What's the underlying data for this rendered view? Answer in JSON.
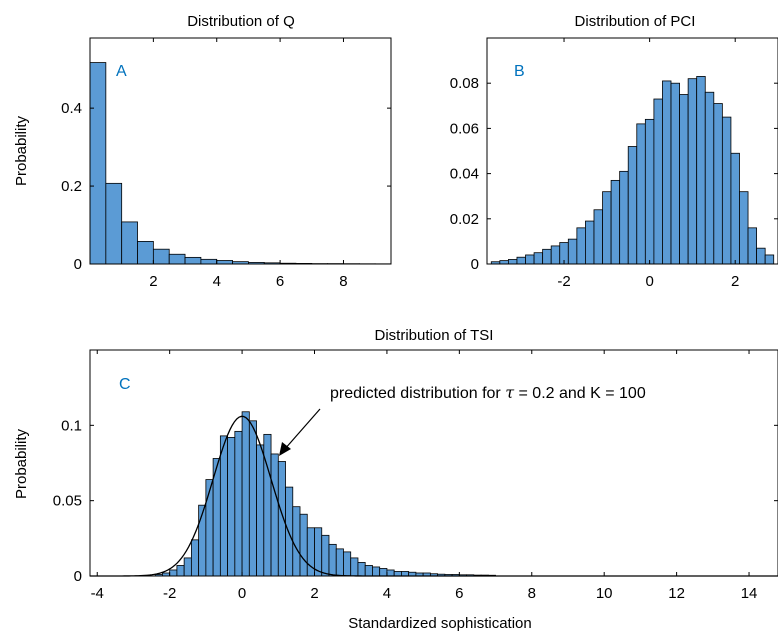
{
  "chart_data": [
    {
      "type": "bar",
      "panel_label": "A",
      "title": "Distribution of Q",
      "xlabel": "",
      "ylabel": "Probability",
      "xlim": [
        0,
        9.5
      ],
      "ylim": [
        0,
        0.58
      ],
      "xticks": [
        2,
        4,
        6,
        8
      ],
      "yticks": [
        0,
        0.2,
        0.4
      ],
      "ytick_labels": [
        "0",
        "0.2",
        "0.4"
      ],
      "bar_color": "#5b9bd5",
      "edge_color": "#000000",
      "grid": false,
      "bins": [
        {
          "x0": 0.0,
          "x1": 0.5,
          "value": 0.517
        },
        {
          "x0": 0.5,
          "x1": 1.0,
          "value": 0.207
        },
        {
          "x0": 1.0,
          "x1": 1.5,
          "value": 0.108
        },
        {
          "x0": 1.5,
          "x1": 2.0,
          "value": 0.058
        },
        {
          "x0": 2.0,
          "x1": 2.5,
          "value": 0.038
        },
        {
          "x0": 2.5,
          "x1": 3.0,
          "value": 0.025
        },
        {
          "x0": 3.0,
          "x1": 3.5,
          "value": 0.017
        },
        {
          "x0": 3.5,
          "x1": 4.0,
          "value": 0.012
        },
        {
          "x0": 4.0,
          "x1": 4.5,
          "value": 0.009
        },
        {
          "x0": 4.5,
          "x1": 5.0,
          "value": 0.006
        },
        {
          "x0": 5.0,
          "x1": 5.5,
          "value": 0.004
        },
        {
          "x0": 5.5,
          "x1": 6.0,
          "value": 0.003
        },
        {
          "x0": 6.0,
          "x1": 6.5,
          "value": 0.002
        },
        {
          "x0": 6.5,
          "x1": 7.0,
          "value": 0.0015
        },
        {
          "x0": 7.0,
          "x1": 7.5,
          "value": 0.001
        },
        {
          "x0": 7.5,
          "x1": 8.0,
          "value": 0.001
        },
        {
          "x0": 8.0,
          "x1": 8.5,
          "value": 0.0008
        },
        {
          "x0": 8.5,
          "x1": 9.0,
          "value": 0.0006
        },
        {
          "x0": 9.0,
          "x1": 9.5,
          "value": 0.0005
        }
      ]
    },
    {
      "type": "bar",
      "panel_label": "B",
      "title": "Distribution of PCI",
      "xlabel": "",
      "ylabel": "",
      "xlim": [
        -3.8,
        3.0
      ],
      "ylim": [
        0,
        0.1
      ],
      "xticks": [
        -2,
        0,
        2
      ],
      "yticks": [
        0,
        0.02,
        0.04,
        0.06,
        0.08
      ],
      "ytick_labels": [
        "0",
        "0.02",
        "0.04",
        "0.06",
        "0.08"
      ],
      "bar_color": "#5b9bd5",
      "edge_color": "#000000",
      "grid": false,
      "bin_start": -3.7,
      "bin_width": 0.2,
      "values": [
        0.001,
        0.0015,
        0.002,
        0.003,
        0.004,
        0.005,
        0.0065,
        0.008,
        0.0095,
        0.011,
        0.016,
        0.019,
        0.024,
        0.032,
        0.037,
        0.041,
        0.052,
        0.062,
        0.064,
        0.073,
        0.081,
        0.08,
        0.075,
        0.082,
        0.083,
        0.076,
        0.071,
        0.065,
        0.049,
        0.032,
        0.016,
        0.007,
        0.004
      ]
    },
    {
      "type": "bar",
      "panel_label": "C",
      "title": "Distribution of TSI",
      "xlabel": "Standardized sophistication",
      "ylabel": "Probability",
      "xlim": [
        -4.2,
        14.8
      ],
      "ylim": [
        0,
        0.15
      ],
      "xticks": [
        -4,
        -2,
        0,
        2,
        4,
        6,
        8,
        10,
        12,
        14
      ],
      "yticks": [
        0,
        0.05,
        0.1
      ],
      "ytick_labels": [
        "0",
        "0.05",
        "0.1"
      ],
      "bar_color": "#5b9bd5",
      "edge_color": "#000000",
      "grid": false,
      "bin_start": -2.4,
      "bin_width": 0.2,
      "values": [
        0.001,
        0.002,
        0.004,
        0.007,
        0.012,
        0.024,
        0.047,
        0.064,
        0.078,
        0.093,
        0.092,
        0.096,
        0.109,
        0.103,
        0.087,
        0.094,
        0.081,
        0.076,
        0.059,
        0.046,
        0.041,
        0.032,
        0.032,
        0.027,
        0.021,
        0.018,
        0.016,
        0.012,
        0.009,
        0.007,
        0.006,
        0.005,
        0.004,
        0.003,
        0.003,
        0.0025,
        0.002,
        0.002,
        0.0015,
        0.0012,
        0.001,
        0.001,
        0.0008,
        0.0008,
        0.0006,
        0.0006,
        0.0005
      ],
      "annotation": {
        "text_prefix": "predicted distribution for ",
        "symbol": "τ",
        "text_suffix": " = 0.2 and K = 100"
      },
      "curve": {
        "name": "predicted distribution",
        "color": "#000000",
        "mean": 0.0,
        "sd": 0.8,
        "peak": 0.106
      }
    }
  ]
}
